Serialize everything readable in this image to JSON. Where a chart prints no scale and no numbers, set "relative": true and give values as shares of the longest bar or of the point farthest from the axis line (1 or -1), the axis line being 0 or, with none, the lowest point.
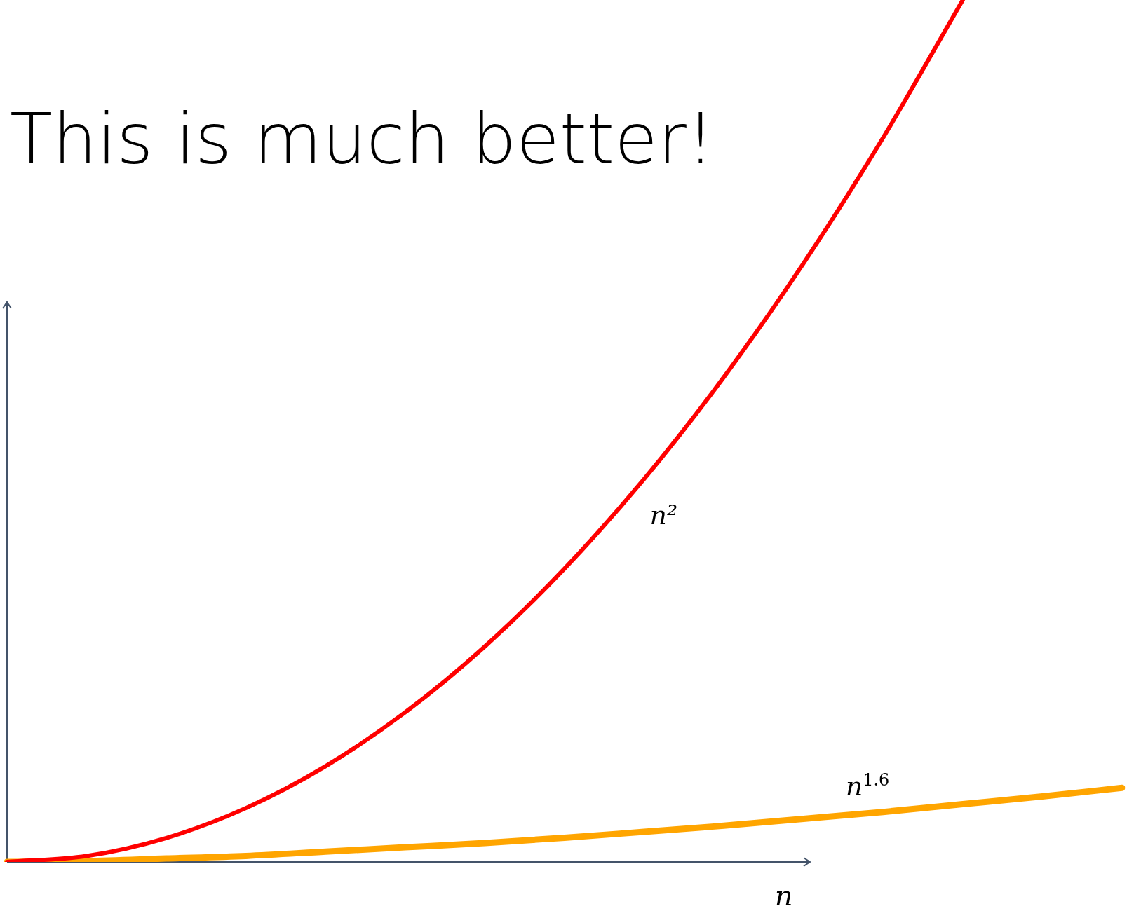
{
  "chart_data": {
    "type": "line",
    "title": "This is much better!",
    "xlabel": "n",
    "relative": true,
    "legend": false,
    "marker": "none",
    "line_style": "solid",
    "categories": [
      null,
      null,
      null,
      null,
      null,
      null,
      null,
      null,
      null,
      null,
      null,
      null,
      null,
      null,
      null
    ],
    "series": [
      {
        "name": "n²",
        "color": "#ff0000",
        "values": [
          0,
          0.0069,
          0.0278,
          0.0625,
          0.1111,
          0.1736,
          0.25,
          0.3403,
          0.4444,
          0.5625,
          0.6944,
          0.8403,
          1,
          null,
          null
        ]
      },
      {
        "name": "n$^{1.6}$",
        "color": "#ffa500",
        "values": [
          0,
          0.001,
          0.004,
          0.007,
          0.012,
          0.017,
          0.022,
          0.028,
          0.035,
          0.042,
          0.05,
          0.058,
          0.067,
          0.076,
          0.086
        ]
      }
    ]
  }
}
